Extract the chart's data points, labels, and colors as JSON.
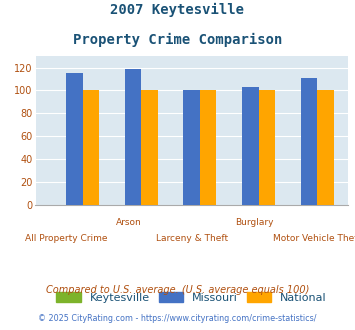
{
  "title_line1": "2007 Keytesville",
  "title_line2": "Property Crime Comparison",
  "categories": [
    "All Property Crime",
    "Arson",
    "Larceny & Theft",
    "Burglary",
    "Motor Vehicle Theft"
  ],
  "row1_labels": [
    "",
    "Arson",
    "",
    "Burglary",
    ""
  ],
  "row2_labels": [
    "All Property Crime",
    "",
    "Larceny & Theft",
    "",
    "Motor Vehicle Theft"
  ],
  "keytesville": [
    0,
    0,
    0,
    0,
    0
  ],
  "missouri": [
    115,
    119,
    100,
    103,
    111
  ],
  "national": [
    100,
    100,
    100,
    100,
    100
  ],
  "bar_colors": {
    "keytesville": "#7db32a",
    "missouri": "#4472c4",
    "national": "#ffa500"
  },
  "ylim": [
    0,
    130
  ],
  "yticks": [
    0,
    20,
    40,
    60,
    80,
    100,
    120
  ],
  "plot_bg_color": "#dce8f0",
  "title_color": "#1a5276",
  "axis_label_color": "#b05010",
  "legend_labels": [
    "Keytesville",
    "Missouri",
    "National"
  ],
  "footnote1": "Compared to U.S. average. (U.S. average equals 100)",
  "footnote2": "© 2025 CityRating.com - https://www.cityrating.com/crime-statistics/",
  "footnote1_color": "#b05010",
  "footnote2_color": "#4472c4",
  "grid_color": "#ffffff",
  "bar_width": 0.28
}
